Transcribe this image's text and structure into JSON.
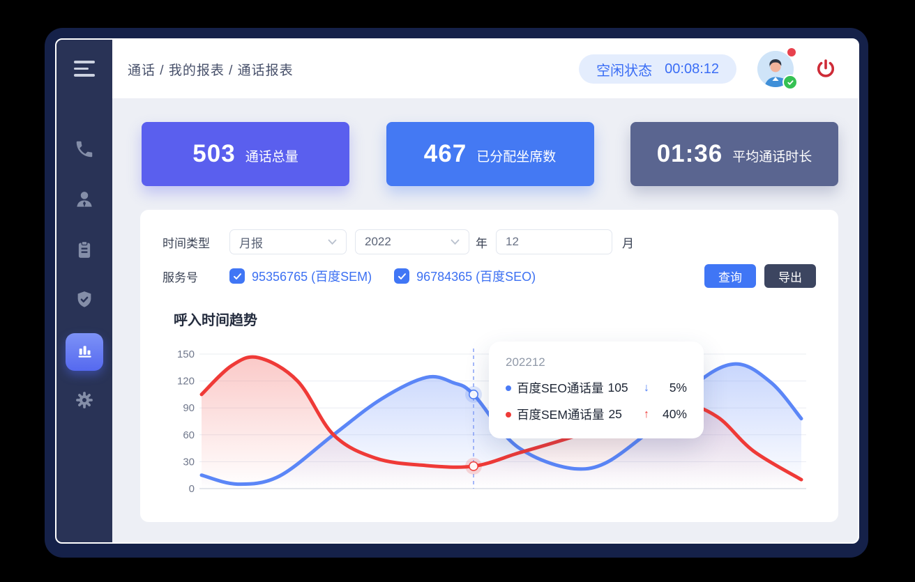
{
  "header": {
    "breadcrumb": "通话 / 我的报表 / 通话报表",
    "status": {
      "label": "空闲状态",
      "time": "00:08:12"
    },
    "icons": [
      "menu-icon",
      "avatar",
      "notification-dot",
      "online-check-badge",
      "power-icon"
    ]
  },
  "sidebar": {
    "icons": [
      "phone-icon",
      "user-icon",
      "tasks-icon",
      "shield-icon",
      "bar-chart-icon",
      "settings-icon"
    ],
    "active_icon": "bar-chart-icon"
  },
  "stats": [
    {
      "value": "503",
      "label": "通话总量",
      "color": "#5a5fee"
    },
    {
      "value": "467",
      "label": "已分配坐席数",
      "color": "#4479f3"
    },
    {
      "value": "01:36",
      "label": "平均通话时长",
      "color": "#5a6590"
    }
  ],
  "filters": {
    "time_label": "时间类型",
    "time_value": "月报",
    "year_value": "2022",
    "year_unit": "年",
    "month_value": "12",
    "month_unit": "月",
    "service_label": "服务号",
    "services": [
      {
        "label": "95356765 (百度SEM)",
        "checked": true
      },
      {
        "label": "96784365 (百度SEO)",
        "checked": true
      }
    ],
    "query_button": "查询",
    "export_button": "导出"
  },
  "chart_data": {
    "type": "line",
    "title": "呼入时间趋势",
    "x_unit": "month (axis unlabeled)",
    "yticks": [
      0,
      30,
      60,
      90,
      120,
      150
    ],
    "ylim": [
      0,
      150
    ],
    "grid": true,
    "series": [
      {
        "name": "百度SEO通话量",
        "color": "#5b86f7",
        "fill": "#7d9ef9",
        "points": [
          [
            0,
            15
          ],
          [
            0.06,
            5
          ],
          [
            0.13,
            14
          ],
          [
            0.22,
            60
          ],
          [
            0.3,
            100
          ],
          [
            0.375,
            124
          ],
          [
            0.42,
            118
          ],
          [
            0.4535,
            105
          ],
          [
            0.53,
            45
          ],
          [
            0.64,
            22
          ],
          [
            0.73,
            55
          ],
          [
            0.82,
            115
          ],
          [
            0.89,
            139
          ],
          [
            0.95,
            118
          ],
          [
            1,
            78
          ]
        ]
      },
      {
        "name": "百度SEM通话量",
        "color": "#ef3a37",
        "fill": "#f47f7c",
        "points": [
          [
            0,
            105
          ],
          [
            0.05,
            137
          ],
          [
            0.095,
            146
          ],
          [
            0.16,
            120
          ],
          [
            0.22,
            60
          ],
          [
            0.29,
            34
          ],
          [
            0.37,
            26
          ],
          [
            0.4535,
            25
          ],
          [
            0.53,
            40
          ],
          [
            0.62,
            58
          ],
          [
            0.72,
            82
          ],
          [
            0.8,
            94
          ],
          [
            0.86,
            80
          ],
          [
            0.92,
            42
          ],
          [
            1,
            10
          ]
        ]
      }
    ],
    "tooltip": {
      "label": "202212",
      "x_frac": 0.4535,
      "rows": [
        {
          "series": "百度SEO通话量",
          "value": 105,
          "arrow": "↓",
          "direction": "down",
          "change": "5%",
          "color": "#4a7bf6"
        },
        {
          "series": "百度SEM通话量",
          "value": 25,
          "arrow": "↑",
          "direction": "up",
          "change": "40%",
          "color": "#ee3b38"
        }
      ]
    }
  },
  "colors": {
    "frame": "#152149",
    "sidebar": "#293356",
    "content_bg": "#edeff5",
    "accent_blue": "#4076f5",
    "export_dark": "#3c4560",
    "danger_red": "#ce2b37",
    "success_green": "#35c153",
    "pill_bg": "#e4edfd",
    "pill_text": "#3a6df5",
    "line_blue": "#5b86f7",
    "line_red": "#ef3a37"
  }
}
